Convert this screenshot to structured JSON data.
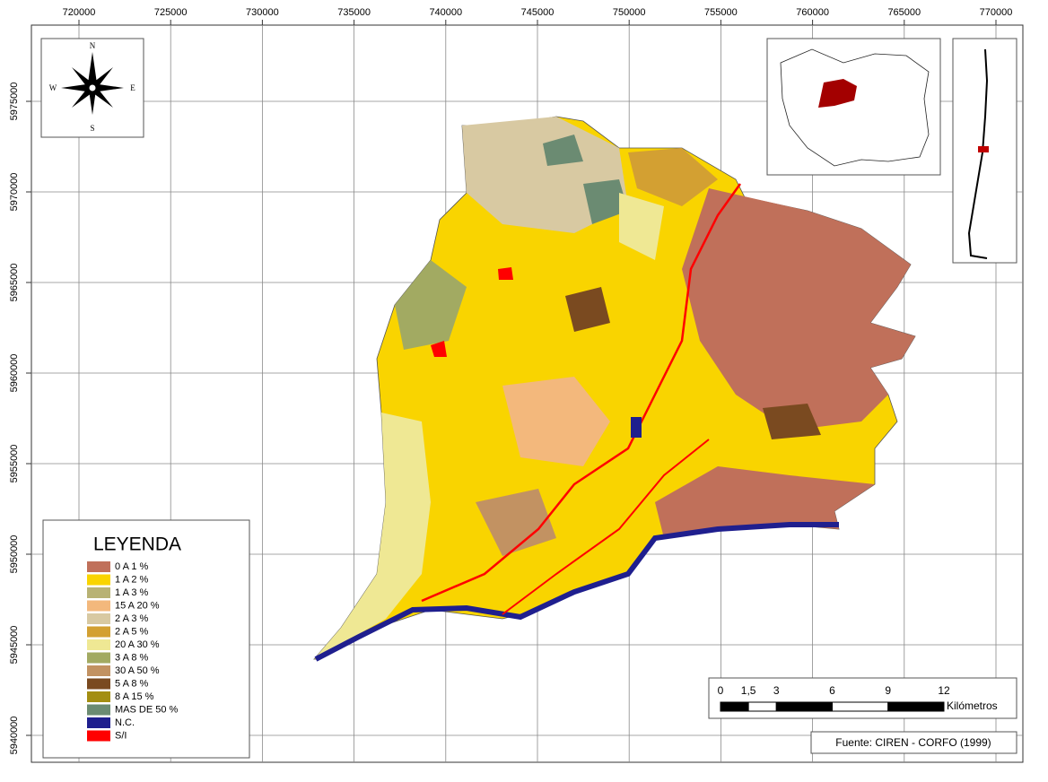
{
  "map": {
    "x_ticks": [
      720000,
      725000,
      730000,
      735000,
      740000,
      745000,
      750000,
      755000,
      760000,
      765000,
      770000
    ],
    "y_ticks": [
      5975000,
      5970000,
      5965000,
      5960000,
      5955000,
      5950000,
      5945000,
      5940000
    ]
  },
  "compass": {
    "north": "N",
    "south": "S",
    "east": "E",
    "west": "W"
  },
  "legend": {
    "title": "LEYENDA",
    "items": [
      {
        "label": "0 A 1 %",
        "color": "#c0705a"
      },
      {
        "label": "1 A 2 %",
        "color": "#f9d400"
      },
      {
        "label": "1 A 3 %",
        "color": "#b8b274"
      },
      {
        "label": "15 A 20 %",
        "color": "#f3b87c"
      },
      {
        "label": "2 A 3 %",
        "color": "#d8c9a2"
      },
      {
        "label": "2 A 5 %",
        "color": "#d3a032"
      },
      {
        "label": "20 A 30 %",
        "color": "#efe894"
      },
      {
        "label": "3 A 8 %",
        "color": "#a2aa62"
      },
      {
        "label": "30 A 50 %",
        "color": "#c29262"
      },
      {
        "label": "5 A 8 %",
        "color": "#7a4a20"
      },
      {
        "label": "8 A 15 %",
        "color": "#a38e12"
      },
      {
        "label": "MAS DE 50 %",
        "color": "#6b8b72"
      },
      {
        "label": "N.C.",
        "color": "#1f1f8e"
      },
      {
        "label": "S/I",
        "color": "#ff0000"
      }
    ]
  },
  "scale_bar": {
    "ticks": [
      0,
      {
        "value": 1.5,
        "label": "1,5"
      },
      3,
      6,
      9,
      12
    ],
    "unit": "Kilómetros"
  },
  "source": "Fuente: CIREN - CORFO (1999)"
}
